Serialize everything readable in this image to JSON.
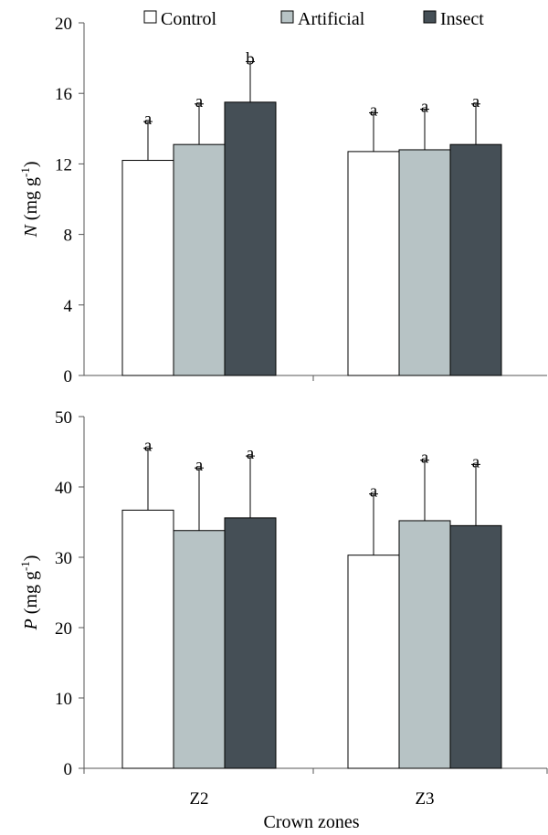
{
  "legend": [
    {
      "name": "Control",
      "color": "#ffffff"
    },
    {
      "name": "Artificial",
      "color": "#b7c3c5"
    },
    {
      "name": "Insect",
      "color": "#454f56"
    }
  ],
  "xlabel": "Crown zones",
  "chart_data": [
    {
      "type": "bar",
      "panel": "top",
      "categories": [
        "Z2",
        "Z3"
      ],
      "ylabel_var": "N",
      "ylabel_unit_pre": " (mg g",
      "ylabel_unit_sup": "-1",
      "ylabel_unit_post": ")",
      "ylim": [
        0,
        20
      ],
      "yticks": [
        0,
        4,
        8,
        12,
        16,
        20
      ],
      "series": [
        {
          "name": "Control",
          "values": [
            12.2,
            12.7
          ],
          "errors": [
            2.2,
            2.2
          ],
          "letters": [
            "a",
            "a"
          ]
        },
        {
          "name": "Artificial",
          "values": [
            13.1,
            12.8
          ],
          "errors": [
            2.3,
            2.3
          ],
          "letters": [
            "a",
            "a"
          ]
        },
        {
          "name": "Insect",
          "values": [
            15.5,
            13.1
          ],
          "errors": [
            2.3,
            2.3
          ],
          "letters": [
            "b",
            "a"
          ]
        }
      ]
    },
    {
      "type": "bar",
      "panel": "bottom",
      "categories": [
        "Z2",
        "Z3"
      ],
      "ylabel_var": "P",
      "ylabel_unit_pre": " (mg g",
      "ylabel_unit_sup": "-1",
      "ylabel_unit_post": ")",
      "ylim": [
        0,
        50
      ],
      "yticks": [
        0,
        10,
        20,
        30,
        40,
        50
      ],
      "series": [
        {
          "name": "Control",
          "values": [
            36.7,
            30.3
          ],
          "errors": [
            8.8,
            8.7
          ],
          "letters": [
            "a",
            "a"
          ]
        },
        {
          "name": "Artificial",
          "values": [
            33.8,
            35.2
          ],
          "errors": [
            8.9,
            8.6
          ],
          "letters": [
            "a",
            "a"
          ]
        },
        {
          "name": "Insect",
          "values": [
            35.6,
            34.5
          ],
          "errors": [
            8.8,
            8.7
          ],
          "letters": [
            "a",
            "a"
          ]
        }
      ]
    }
  ]
}
